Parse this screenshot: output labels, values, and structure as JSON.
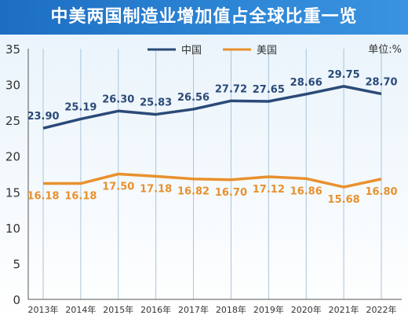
{
  "chart_data": {
    "type": "line",
    "title": "中美两国制造业增加值占全球比重一览",
    "unit": "单位:%",
    "categories": [
      "2013年",
      "2014年",
      "2015年",
      "2016年",
      "2017年",
      "2018年",
      "2019年",
      "2020年",
      "2021年",
      "2022年"
    ],
    "series": [
      {
        "name": "中国",
        "color": "#2b4a78",
        "values": [
          23.9,
          25.19,
          26.3,
          25.83,
          26.56,
          27.72,
          27.65,
          28.66,
          29.75,
          28.7
        ],
        "labels": [
          "23.90",
          "25.19",
          "26.30",
          "25.83",
          "26.56",
          "27.72",
          "27.65",
          "28.66",
          "29.75",
          "28.70"
        ]
      },
      {
        "name": "美国",
        "color": "#e8912e",
        "values": [
          16.18,
          16.18,
          17.5,
          17.18,
          16.82,
          16.7,
          17.12,
          16.86,
          15.68,
          16.8
        ],
        "labels": [
          "16.18",
          "16.18",
          "17.50",
          "17.18",
          "16.82",
          "16.70",
          "17.12",
          "16.86",
          "15.68",
          "16.80"
        ]
      }
    ],
    "yticks": [
      "0",
      "5",
      "10",
      "15",
      "20",
      "25",
      "30",
      "35"
    ],
    "ylim": [
      0,
      35
    ],
    "legend_position": "top-center",
    "grid": "vertical"
  }
}
